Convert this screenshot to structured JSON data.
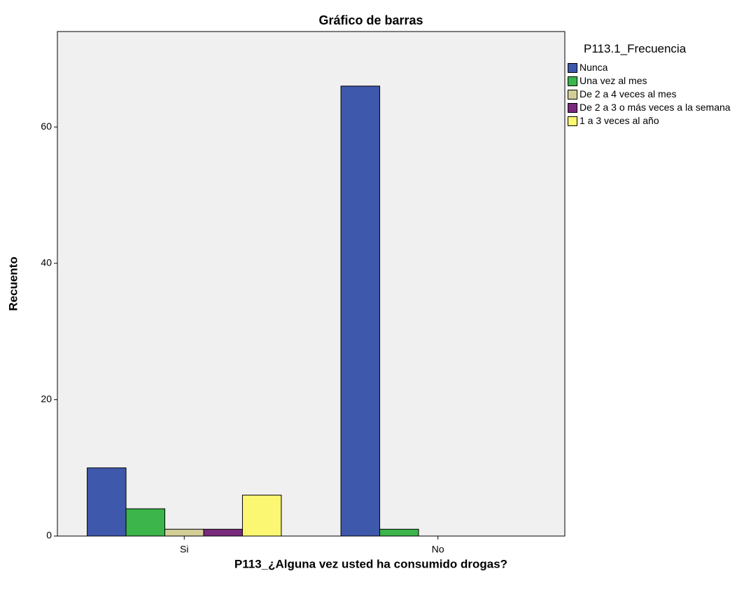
{
  "chart_data": {
    "type": "bar",
    "title": "Gráfico de barras",
    "x_label": "P113_¿Alguna vez usted ha consumido drogas?",
    "y_label": "Recuento",
    "legend_title": "P113.1_Frecuencia",
    "categories": [
      "Si",
      "No"
    ],
    "series": [
      {
        "name": "Nunca",
        "color": "#3e58ac",
        "values": [
          10,
          66
        ]
      },
      {
        "name": "Una vez al mes",
        "color": "#3cb54a",
        "values": [
          4,
          1
        ]
      },
      {
        "name": "De 2 a 4 veces al mes",
        "color": "#d3ce97",
        "values": [
          1,
          0
        ]
      },
      {
        "name": "De 2 a 3 o más veces a la semana",
        "color": "#7a2a7c",
        "values": [
          1,
          0
        ]
      },
      {
        "name": "1 a 3 veces al  año",
        "color": "#fbf772",
        "values": [
          6,
          0
        ]
      }
    ],
    "ylim": [
      0,
      74
    ],
    "yticks": [
      0,
      20,
      40,
      60
    ]
  }
}
